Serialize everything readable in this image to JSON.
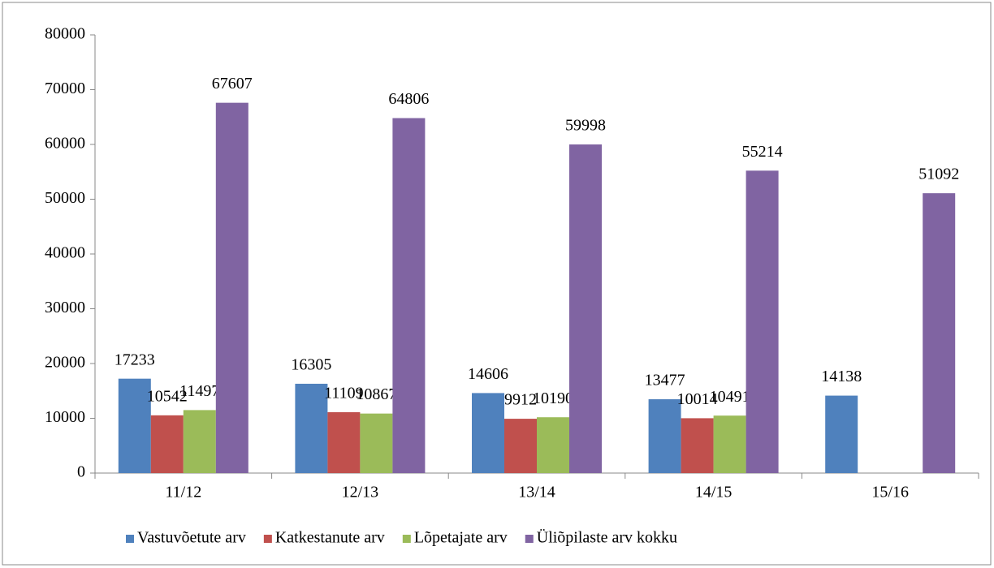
{
  "chart_data": {
    "type": "bar",
    "categories": [
      "11/12",
      "12/13",
      "13/14",
      "14/15",
      "15/16"
    ],
    "series": [
      {
        "name": "Vastuvõetute arv",
        "color": "#4f81bd",
        "values": [
          17233,
          16305,
          14606,
          13477,
          14138
        ]
      },
      {
        "name": "Katkestanute arv",
        "color": "#c0504d",
        "values": [
          10542,
          11109,
          9912,
          10014,
          null
        ]
      },
      {
        "name": "Lõpetajate arv",
        "color": "#9bbb59",
        "values": [
          11497,
          10867,
          10190,
          10491,
          null
        ]
      },
      {
        "name": "Üliõpilaste arv kokku",
        "color": "#8064a2",
        "values": [
          67607,
          64806,
          59998,
          55214,
          51092
        ]
      }
    ],
    "ylim": [
      0,
      80000
    ],
    "yticks": [
      0,
      10000,
      20000,
      30000,
      40000,
      50000,
      60000,
      70000,
      80000
    ],
    "grid": false,
    "legend": "bottom"
  }
}
